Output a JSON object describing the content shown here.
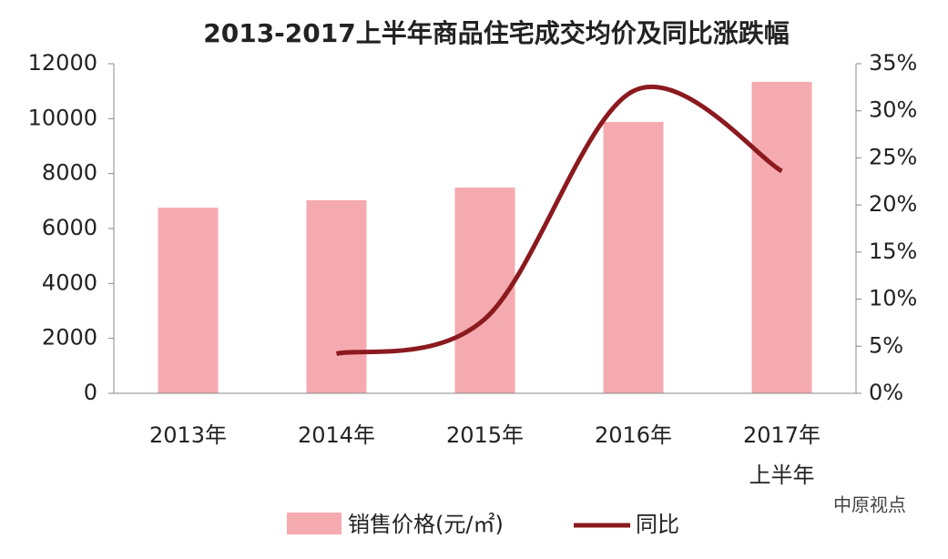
{
  "chart_data": {
    "type": "bar-line",
    "title": "2013-2017上半年商品住宅成交均价及同比涨跌幅",
    "categories": [
      "2013年",
      "2014年",
      "2015年",
      "2016年",
      "2017年上半年"
    ],
    "series": [
      {
        "name": "销售价格(元/㎡)",
        "type": "bar",
        "color": "#f5aaaf",
        "values": [
          6760,
          7030,
          7490,
          9880,
          11340
        ]
      },
      {
        "name": "同比",
        "type": "line",
        "axis": "y2",
        "color": "#8b1a1f",
        "values": [
          null,
          4.2,
          7.9,
          32.1,
          23.6
        ]
      }
    ],
    "ylim": [
      0,
      12000
    ],
    "yticks": [
      0,
      2000,
      4000,
      6000,
      8000,
      10000,
      12000
    ],
    "y2lim": [
      0,
      35
    ],
    "y2ticks": [
      {
        "value": 0,
        "label": "0%"
      },
      {
        "value": 5,
        "label": "5%"
      },
      {
        "value": 10,
        "label": "10%"
      },
      {
        "value": 15,
        "label": "15%"
      },
      {
        "value": 20,
        "label": "20%"
      },
      {
        "value": 25,
        "label": "25%"
      },
      {
        "value": 30,
        "label": "30%"
      },
      {
        "value": 35,
        "label": "35%"
      }
    ],
    "legend": "bottom",
    "watermark": "中原视点"
  }
}
